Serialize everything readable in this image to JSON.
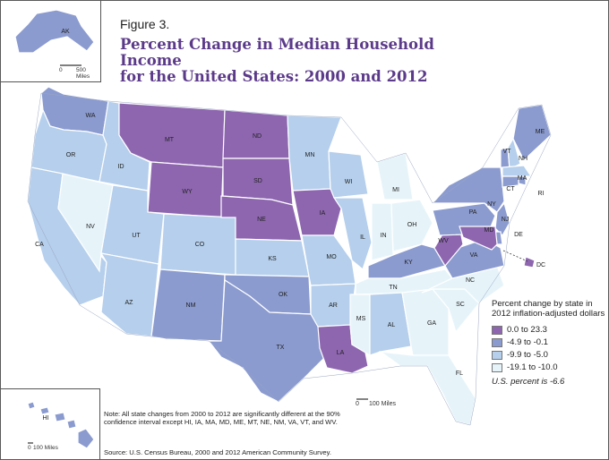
{
  "figure_label": "Figure 3.",
  "title_line1": "Percent Change in Median Household Income",
  "title_line2": "for the United States: 2000 and 2012",
  "alaska_scale": "500 Miles",
  "alaska_scale_zero": "0",
  "hawaii_scale": "100 Miles",
  "hawaii_scale_zero": "0",
  "main_scale": "100 Miles",
  "main_scale_zero": "0",
  "legend": {
    "title": "Percent change by state in 2012 inflation-adjusted dollars",
    "classes": [
      {
        "label": "0.0 to 23.3",
        "color": "#8e66b0"
      },
      {
        "label": "-4.9 to -0.1",
        "color": "#8b9bcf"
      },
      {
        "label": "-9.9 to -5.0",
        "color": "#b5cfec"
      },
      {
        "label": "-19.1 to -10.0",
        "color": "#e6f4fa"
      }
    ],
    "us_percent": "U.S. percent is -6.6"
  },
  "note": "Note: All state changes from 2000 to 2012 are significantly different at the 90% confidence interval except HI, IA, MA, MD, ME, MT, NE, NM, VA, VT, and WV.",
  "source": "Source: U.S. Census Bureau, 2000 and 2012 American Community Survey.",
  "states": [
    {
      "abbr": "WA",
      "cls": 1
    },
    {
      "abbr": "OR",
      "cls": 2
    },
    {
      "abbr": "CA",
      "cls": 2
    },
    {
      "abbr": "NV",
      "cls": 3
    },
    {
      "abbr": "ID",
      "cls": 2
    },
    {
      "abbr": "MT",
      "cls": 0
    },
    {
      "abbr": "WY",
      "cls": 0
    },
    {
      "abbr": "UT",
      "cls": 2
    },
    {
      "abbr": "AZ",
      "cls": 2
    },
    {
      "abbr": "CO",
      "cls": 2
    },
    {
      "abbr": "NM",
      "cls": 1
    },
    {
      "abbr": "ND",
      "cls": 0
    },
    {
      "abbr": "SD",
      "cls": 0
    },
    {
      "abbr": "NE",
      "cls": 0
    },
    {
      "abbr": "KS",
      "cls": 2
    },
    {
      "abbr": "OK",
      "cls": 1
    },
    {
      "abbr": "TX",
      "cls": 1
    },
    {
      "abbr": "MN",
      "cls": 2
    },
    {
      "abbr": "IA",
      "cls": 0
    },
    {
      "abbr": "MO",
      "cls": 2
    },
    {
      "abbr": "AR",
      "cls": 2
    },
    {
      "abbr": "LA",
      "cls": 0
    },
    {
      "abbr": "WI",
      "cls": 2
    },
    {
      "abbr": "IL",
      "cls": 2
    },
    {
      "abbr": "MI",
      "cls": 3
    },
    {
      "abbr": "IN",
      "cls": 3
    },
    {
      "abbr": "OH",
      "cls": 3
    },
    {
      "abbr": "KY",
      "cls": 1
    },
    {
      "abbr": "TN",
      "cls": 3
    },
    {
      "abbr": "MS",
      "cls": 3
    },
    {
      "abbr": "AL",
      "cls": 2
    },
    {
      "abbr": "GA",
      "cls": 3
    },
    {
      "abbr": "FL",
      "cls": 3
    },
    {
      "abbr": "SC",
      "cls": 3
    },
    {
      "abbr": "NC",
      "cls": 3
    },
    {
      "abbr": "VA",
      "cls": 1
    },
    {
      "abbr": "WV",
      "cls": 0
    },
    {
      "abbr": "PA",
      "cls": 1
    },
    {
      "abbr": "NY",
      "cls": 1
    },
    {
      "abbr": "VT",
      "cls": 1
    },
    {
      "abbr": "NH",
      "cls": 2
    },
    {
      "abbr": "ME",
      "cls": 1
    },
    {
      "abbr": "MA",
      "cls": 2
    },
    {
      "abbr": "RI",
      "cls": 1
    },
    {
      "abbr": "CT",
      "cls": 1
    },
    {
      "abbr": "NJ",
      "cls": 1
    },
    {
      "abbr": "DE",
      "cls": 1
    },
    {
      "abbr": "MD",
      "cls": 0
    },
    {
      "abbr": "DC",
      "cls": 0
    },
    {
      "abbr": "AK",
      "cls": 1
    },
    {
      "abbr": "HI",
      "cls": 1
    }
  ]
}
